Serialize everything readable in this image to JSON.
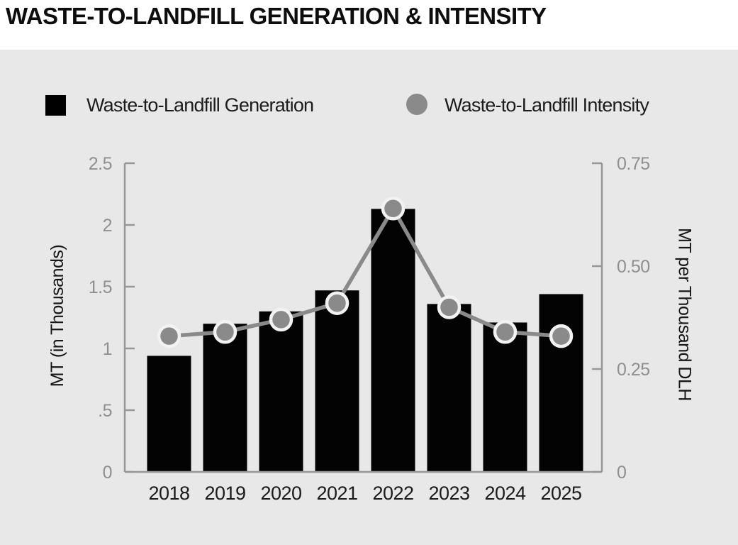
{
  "title": "WASTE-TO-LANDFILL GENERATION & INTENSITY",
  "legend": [
    {
      "label": "Waste-to-Landfill Generation",
      "swatch": "square",
      "color": "#000000"
    },
    {
      "label": "Waste-to-Landfill Intensity",
      "swatch": "circle",
      "color": "#8a8a8a"
    }
  ],
  "colors": {
    "panel_background": "#e8e8e8",
    "bar": "#030303",
    "line": "#8a8a8a",
    "marker_fill": "#8a8a8a",
    "marker_ring": "#f2f2f2",
    "axis": "#979797",
    "tick_text": "#8f8f8f",
    "category_text": "#1b1b1b",
    "axis_title_text": "#161616"
  },
  "chart_data": {
    "type": "bar",
    "title": "WASTE-TO-LANDFILL GENERATION & INTENSITY",
    "categories": [
      "2018",
      "2019",
      "2020",
      "2021",
      "2022",
      "2023",
      "2024",
      "2025"
    ],
    "series": [
      {
        "name": "Waste-to-Landfill Generation",
        "type": "bar",
        "axis": "left",
        "color": "#030303",
        "values": [
          0.94,
          1.2,
          1.3,
          1.47,
          2.13,
          1.36,
          1.21,
          1.44
        ]
      },
      {
        "name": "Waste-to-Landfill Intensity",
        "type": "line",
        "axis": "right",
        "color": "#8a8a8a",
        "values": [
          0.33,
          0.34,
          0.37,
          0.41,
          0.64,
          0.4,
          0.34,
          0.33
        ]
      }
    ],
    "left_axis": {
      "label": "MT (in Thousands)",
      "min": 0,
      "max": 2.5,
      "ticks": [
        {
          "label": "0",
          "value": 0
        },
        {
          "label": ".5",
          "value": 0.5
        },
        {
          "label": "1",
          "value": 1
        },
        {
          "label": "1.5",
          "value": 1.5
        },
        {
          "label": "2",
          "value": 2
        },
        {
          "label": "2.5",
          "value": 2.5
        }
      ]
    },
    "right_axis": {
      "label": "MT per Thousand DLH",
      "min": 0,
      "max": 0.75,
      "ticks": [
        {
          "label": "0",
          "value": 0
        },
        {
          "label": "0.25",
          "value": 0.25
        },
        {
          "label": "0.50",
          "value": 0.5
        },
        {
          "label": "0.75",
          "value": 0.75
        }
      ]
    },
    "legend_position": "top",
    "grid": false
  }
}
